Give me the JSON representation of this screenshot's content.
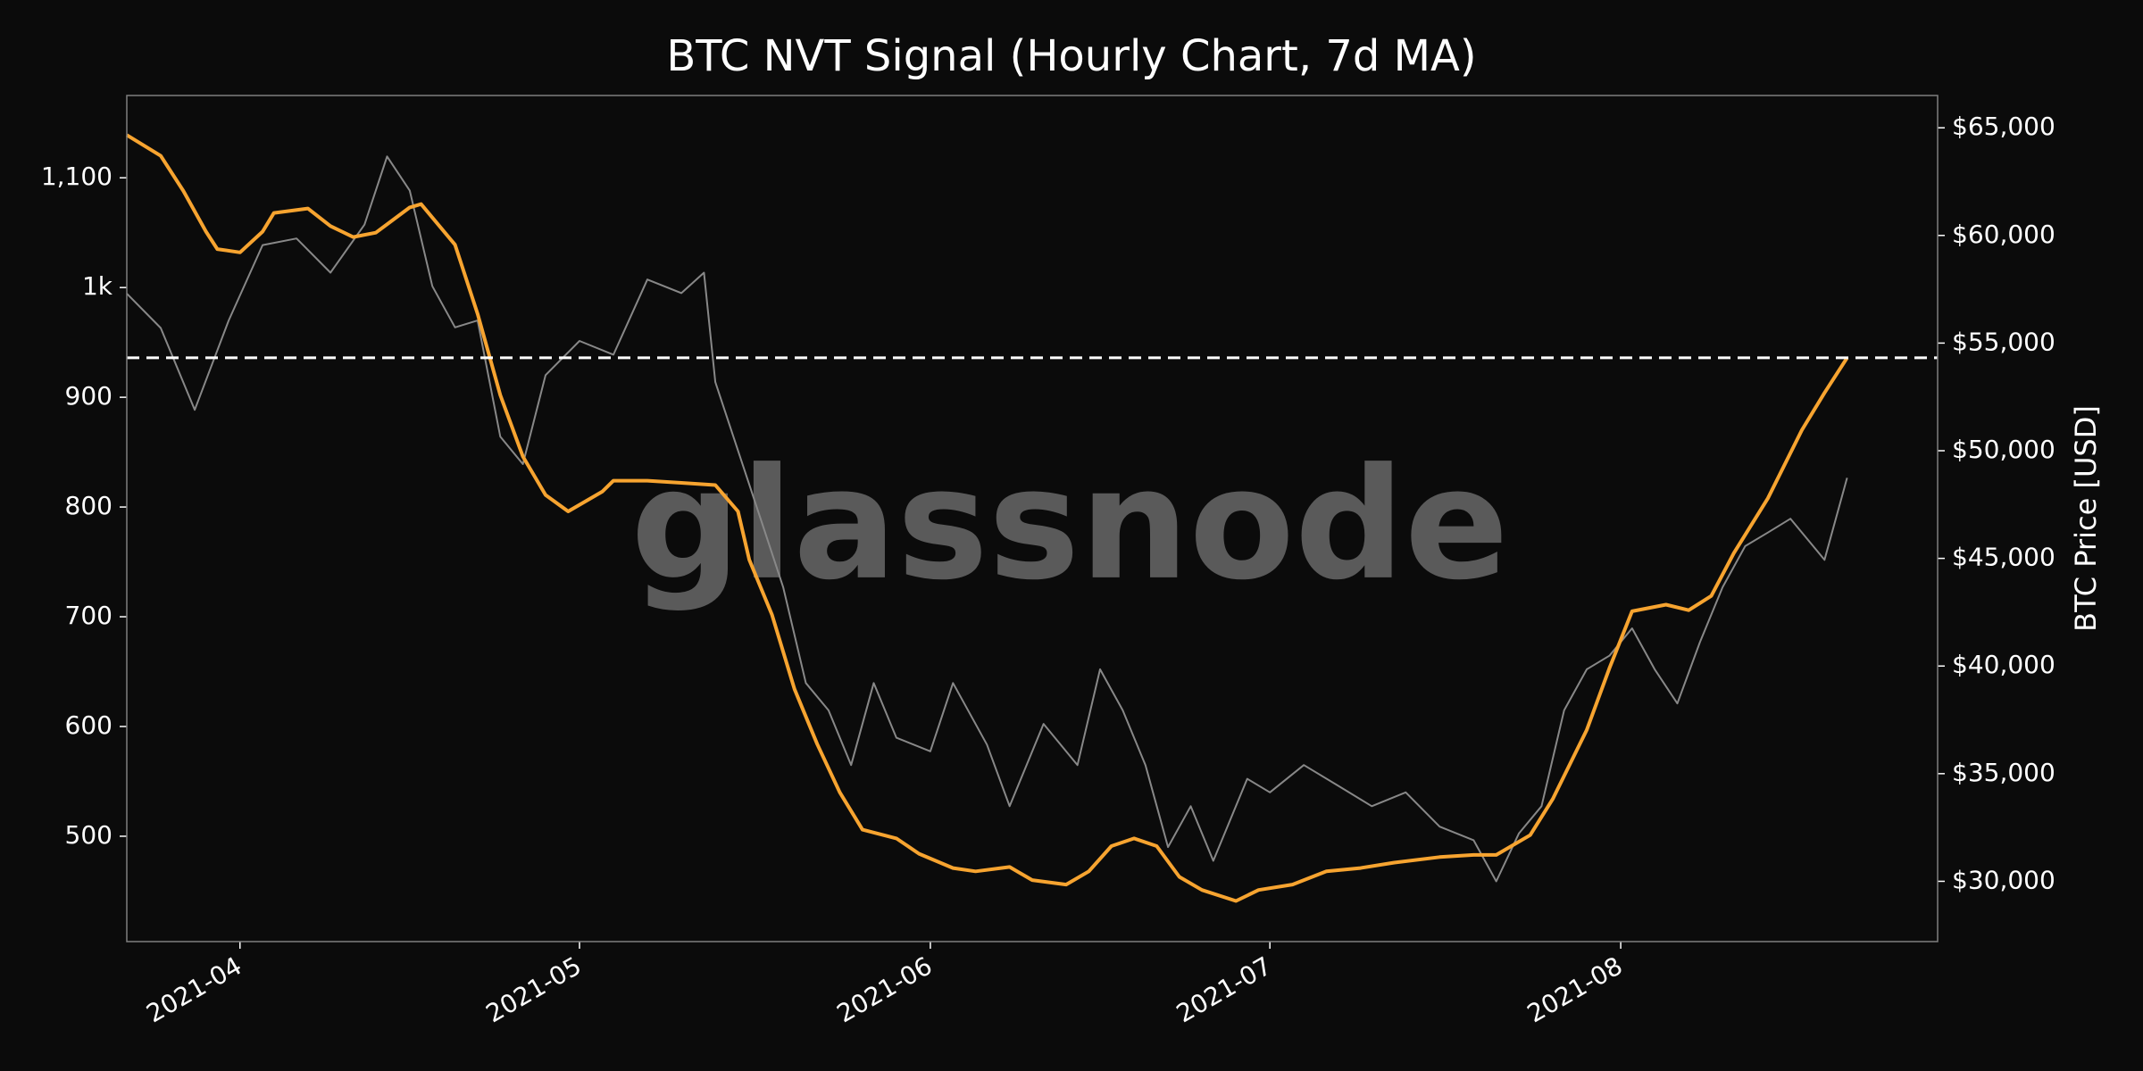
{
  "chart_data": {
    "type": "line",
    "title": "BTC NVT Signal (Hourly Chart, 7d MA)",
    "y2label": "BTC Price [USD]",
    "watermark": "glassnode",
    "xlim": [
      "2021-03-22",
      "2021-08-29"
    ],
    "xticks": [
      "2021-04",
      "2021-05",
      "2021-06",
      "2021-07",
      "2021-08"
    ],
    "ylim": [
      404,
      1175
    ],
    "yticks": [
      500,
      600,
      700,
      800,
      900,
      {
        "value": 1000,
        "label": "1k"
      },
      {
        "value": 1100,
        "label": "1,100"
      }
    ],
    "y2lim": [
      27200,
      66500
    ],
    "y2ticks": [
      {
        "value": 30000,
        "label": "$30,000"
      },
      {
        "value": 35000,
        "label": "$35,000"
      },
      {
        "value": 40000,
        "label": "$40,000"
      },
      {
        "value": 45000,
        "label": "$45,000"
      },
      {
        "value": 50000,
        "label": "$50,000"
      },
      {
        "value": 55000,
        "label": "$55,000"
      },
      {
        "value": 60000,
        "label": "$60,000"
      },
      {
        "value": 65000,
        "label": "$65,000"
      }
    ],
    "hline": {
      "value": 936,
      "color": "#ffffff"
    },
    "series": [
      {
        "color": "#888888",
        "axis": "y2",
        "x": [
          "2021-03-22",
          "2021-03-25",
          "2021-03-28",
          "2021-03-31",
          "2021-04-03",
          "2021-04-06",
          "2021-04-09",
          "2021-04-12",
          "2021-04-14",
          "2021-04-16",
          "2021-04-18",
          "2021-04-20",
          "2021-04-22",
          "2021-04-24",
          "2021-04-26",
          "2021-04-28",
          "2021-05-01",
          "2021-05-04",
          "2021-05-07",
          "2021-05-10",
          "2021-05-12",
          "2021-05-13",
          "2021-05-15",
          "2021-05-17",
          "2021-05-19",
          "2021-05-21",
          "2021-05-23",
          "2021-05-25",
          "2021-05-27",
          "2021-05-29",
          "2021-06-01",
          "2021-06-03",
          "2021-06-06",
          "2021-06-08",
          "2021-06-11",
          "2021-06-14",
          "2021-06-16",
          "2021-06-18",
          "2021-06-20",
          "2021-06-22",
          "2021-06-24",
          "2021-06-26",
          "2021-06-29",
          "2021-07-01",
          "2021-07-04",
          "2021-07-07",
          "2021-07-10",
          "2021-07-13",
          "2021-07-16",
          "2021-07-19",
          "2021-07-21",
          "2021-07-23",
          "2021-07-25",
          "2021-07-27",
          "2021-07-29",
          "2021-07-31",
          "2021-08-02",
          "2021-08-04",
          "2021-08-06",
          "2021-08-08",
          "2021-08-10",
          "2021-08-12",
          "2021-08-14",
          "2021-08-16",
          "2021-08-18",
          "2021-08-19",
          "2021-08-21"
        ],
        "values": [
          57300,
          55700,
          51900,
          56050,
          59550,
          59860,
          58270,
          60500,
          63670,
          62080,
          57640,
          55730,
          56050,
          50650,
          49380,
          53510,
          55100,
          54460,
          57950,
          57320,
          58270,
          53190,
          50010,
          46840,
          43660,
          39210,
          37940,
          35400,
          39210,
          36670,
          36040,
          39210,
          36350,
          33490,
          37310,
          35400,
          39850,
          37940,
          35400,
          31590,
          33490,
          30950,
          34760,
          34130,
          35400,
          34450,
          33490,
          34130,
          32540,
          31910,
          30000,
          32220,
          33490,
          37940,
          39850,
          40480,
          41750,
          39850,
          38260,
          41110,
          43660,
          45570,
          46200,
          46840,
          45570,
          44930,
          48740
        ]
      },
      {
        "color": "#f7a430",
        "axis": "y",
        "x": [
          "2021-03-22",
          "2021-03-25",
          "2021-03-27",
          "2021-03-29",
          "2021-03-30",
          "2021-04-01",
          "2021-04-03",
          "2021-04-04",
          "2021-04-07",
          "2021-04-09",
          "2021-04-11",
          "2021-04-13",
          "2021-04-16",
          "2021-04-17",
          "2021-04-20",
          "2021-04-22",
          "2021-04-24",
          "2021-04-26",
          "2021-04-28",
          "2021-04-30",
          "2021-05-03",
          "2021-05-04",
          "2021-05-07",
          "2021-05-10",
          "2021-05-13",
          "2021-05-15",
          "2021-05-16",
          "2021-05-18",
          "2021-05-20",
          "2021-05-22",
          "2021-05-24",
          "2021-05-26",
          "2021-05-29",
          "2021-05-31",
          "2021-06-03",
          "2021-06-05",
          "2021-06-08",
          "2021-06-10",
          "2021-06-13",
          "2021-06-15",
          "2021-06-17",
          "2021-06-19",
          "2021-06-21",
          "2021-06-23",
          "2021-06-25",
          "2021-06-28",
          "2021-06-30",
          "2021-07-03",
          "2021-07-06",
          "2021-07-09",
          "2021-07-12",
          "2021-07-16",
          "2021-07-19",
          "2021-07-21",
          "2021-07-24",
          "2021-07-26",
          "2021-07-29",
          "2021-07-31",
          "2021-08-02",
          "2021-08-05",
          "2021-08-07",
          "2021-08-09",
          "2021-08-11",
          "2021-08-14",
          "2021-08-17",
          "2021-08-19",
          "2021-08-21"
        ],
        "values": [
          1139,
          1120,
          1088,
          1051,
          1035,
          1032,
          1051,
          1068,
          1072,
          1056,
          1046,
          1050,
          1073,
          1076,
          1039,
          976,
          902,
          846,
          811,
          796,
          814,
          824,
          824,
          822,
          820,
          796,
          752,
          702,
          634,
          584,
          540,
          506,
          498,
          484,
          471,
          468,
          472,
          460,
          456,
          468,
          491,
          498,
          491,
          463,
          451,
          441,
          451,
          456,
          468,
          471,
          476,
          481,
          483,
          483,
          501,
          534,
          597,
          653,
          705,
          711,
          706,
          719,
          758,
          808,
          870,
          904,
          936
        ]
      }
    ]
  }
}
